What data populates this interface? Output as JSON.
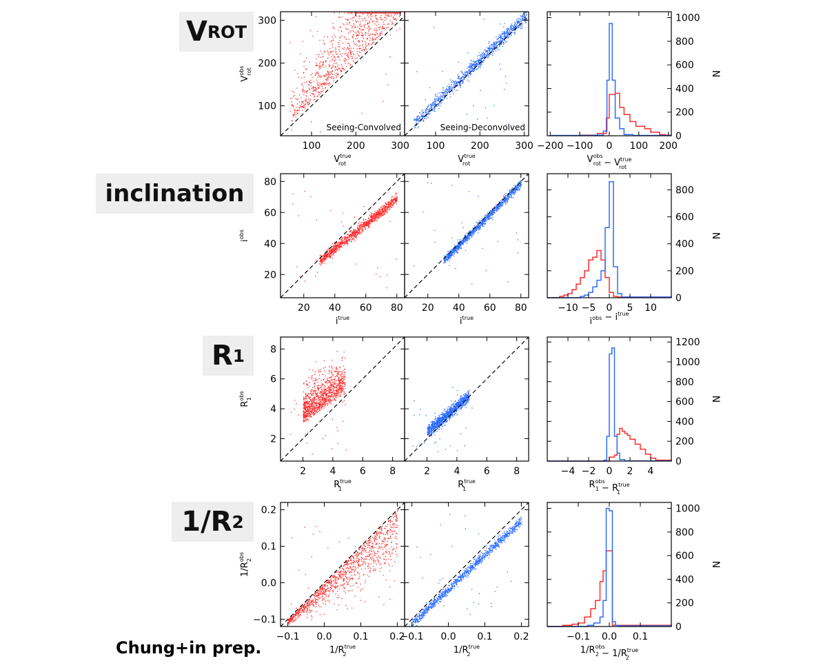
{
  "credit": "Chung+in prep.",
  "colors": {
    "convolved": "#ff2a2a",
    "deconvolved": "#2a6cff",
    "identity_line": "#000000"
  },
  "rows": [
    {
      "label_main": "V",
      "label_sub": "ROT"
    },
    {
      "label_main": "inclination",
      "label_sub": ""
    },
    {
      "label_main": "R",
      "label_sub": "1"
    },
    {
      "label_main": "1/R",
      "label_sub": "2"
    }
  ],
  "chart_data": [
    {
      "type": "scatter",
      "row": "VROT",
      "panels": [
        {
          "name": "convolved",
          "color": "red",
          "annotation": "Seeing-Convolved",
          "xlim": [
            30,
            310
          ],
          "ylim": [
            30,
            320
          ],
          "xticks": [
            100,
            200,
            300
          ],
          "yticks": [
            100,
            200,
            300
          ],
          "xlabel": "V_rot^true",
          "ylabel": "V_rot^obs",
          "identity_line": true
        },
        {
          "name": "deconvolved",
          "color": "blue",
          "annotation": "Seeing-Deconvolved",
          "xlim": [
            30,
            310
          ],
          "ylim": [
            30,
            320
          ],
          "xticks": [
            100,
            200,
            300
          ],
          "yticks": [],
          "xlabel": "V_rot^true",
          "identity_line": true
        }
      ],
      "histogram": {
        "type": "histogram",
        "xlim": [
          -210,
          210
        ],
        "ylim": [
          0,
          1050
        ],
        "xticks": [
          -200,
          -100,
          0,
          100,
          200
        ],
        "yticks": [
          0,
          200,
          400,
          600,
          800,
          1000
        ],
        "xlabel": "V_rot^obs - V_rot^true",
        "ylabel": "N",
        "series": [
          {
            "color": "red",
            "bins": [
              [
                -200,
                2
              ],
              [
                -100,
                5
              ],
              [
                -40,
                20
              ],
              [
                -10,
                150
              ],
              [
                0,
                350
              ],
              [
                20,
                360
              ],
              [
                35,
                240
              ],
              [
                50,
                180
              ],
              [
                70,
                120
              ],
              [
                90,
                80
              ],
              [
                120,
                60
              ],
              [
                140,
                30
              ],
              [
                170,
                10
              ],
              [
                190,
                5
              ]
            ]
          },
          {
            "color": "blue",
            "bins": [
              [
                -200,
                3
              ],
              [
                -50,
                5
              ],
              [
                -20,
                40
              ],
              [
                -8,
                470
              ],
              [
                0,
                950
              ],
              [
                10,
                470
              ],
              [
                20,
                150
              ],
              [
                35,
                60
              ],
              [
                50,
                10
              ],
              [
                80,
                3
              ],
              [
                200,
                3
              ]
            ]
          }
        ]
      }
    },
    {
      "type": "scatter",
      "row": "inclination",
      "panels": [
        {
          "name": "convolved",
          "color": "red",
          "xlim": [
            5,
            85
          ],
          "ylim": [
            5,
            85
          ],
          "xticks": [
            20,
            40,
            60,
            80
          ],
          "yticks": [
            20,
            40,
            60,
            80
          ],
          "xlabel": "i^true",
          "ylabel": "i^obs",
          "identity_line": true
        },
        {
          "name": "deconvolved",
          "color": "blue",
          "xlim": [
            5,
            85
          ],
          "ylim": [
            5,
            85
          ],
          "xticks": [
            20,
            40,
            60,
            80
          ],
          "yticks": [],
          "xlabel": "i^true",
          "identity_line": true
        }
      ],
      "histogram": {
        "type": "histogram",
        "xlim": [
          -15,
          15
        ],
        "ylim": [
          0,
          920
        ],
        "xticks": [
          -10,
          -5,
          0,
          5,
          10
        ],
        "yticks": [
          0,
          200,
          400,
          600,
          800
        ],
        "xlabel": "i^obs - i^true",
        "ylabel": "N",
        "series": [
          {
            "color": "red",
            "bins": [
              [
                -15,
                0
              ],
              [
                -12,
                10
              ],
              [
                -11,
                20
              ],
              [
                -10,
                30
              ],
              [
                -9,
                60
              ],
              [
                -8,
                100
              ],
              [
                -7,
                150
              ],
              [
                -6,
                200
              ],
              [
                -5,
                280
              ],
              [
                -4,
                300
              ],
              [
                -3,
                350
              ],
              [
                -2,
                280
              ],
              [
                -1,
                150
              ],
              [
                0,
                40
              ],
              [
                1,
                10
              ],
              [
                2,
                5
              ],
              [
                15,
                2
              ]
            ]
          },
          {
            "color": "blue",
            "bins": [
              [
                -15,
                0
              ],
              [
                -7,
                10
              ],
              [
                -6,
                20
              ],
              [
                -5,
                40
              ],
              [
                -4,
                80
              ],
              [
                -3,
                130
              ],
              [
                -2,
                200
              ],
              [
                -1,
                520
              ],
              [
                0,
                860
              ],
              [
                1,
                230
              ],
              [
                2,
                30
              ],
              [
                3,
                5
              ],
              [
                15,
                2
              ]
            ]
          }
        ]
      }
    },
    {
      "type": "scatter",
      "row": "R1",
      "panels": [
        {
          "name": "convolved",
          "color": "red",
          "xlim": [
            0.5,
            8.8
          ],
          "ylim": [
            0.5,
            8.8
          ],
          "xticks": [
            2,
            4,
            6,
            8
          ],
          "yticks": [
            2,
            4,
            6,
            8
          ],
          "xlabel": "R_1^true",
          "ylabel": "R_1^obs",
          "identity_line": true
        },
        {
          "name": "deconvolved",
          "color": "blue",
          "xlim": [
            0.5,
            8.8
          ],
          "ylim": [
            0.5,
            8.8
          ],
          "xticks": [
            2,
            4,
            6,
            8
          ],
          "yticks": [],
          "xlabel": "R_1^true",
          "identity_line": true
        }
      ],
      "histogram": {
        "type": "histogram",
        "xlim": [
          -6,
          6
        ],
        "ylim": [
          0,
          1250
        ],
        "xticks": [
          -4,
          -2,
          0,
          2,
          4
        ],
        "yticks": [
          0,
          200,
          400,
          600,
          800,
          1000,
          1200
        ],
        "xlabel": "R_1^obs - R_1^true",
        "ylabel": "N",
        "series": [
          {
            "color": "red",
            "bins": [
              [
                -6,
                0
              ],
              [
                0,
                40
              ],
              [
                0.5,
                60
              ],
              [
                0.75,
                270
              ],
              [
                1,
                330
              ],
              [
                1.25,
                300
              ],
              [
                1.5,
                280
              ],
              [
                1.75,
                260
              ],
              [
                2,
                220
              ],
              [
                2.5,
                170
              ],
              [
                3,
                120
              ],
              [
                3.5,
                70
              ],
              [
                4,
                30
              ],
              [
                4.5,
                10
              ],
              [
                6,
                2
              ]
            ]
          },
          {
            "color": "blue",
            "bins": [
              [
                -6,
                0
              ],
              [
                -0.5,
                10
              ],
              [
                -0.25,
                250
              ],
              [
                0,
                1080
              ],
              [
                0.25,
                1140
              ],
              [
                0.5,
                250
              ],
              [
                0.75,
                80
              ],
              [
                1,
                15
              ],
              [
                1.5,
                3
              ],
              [
                6,
                0
              ]
            ]
          }
        ]
      }
    },
    {
      "type": "scatter",
      "row": "1/R2",
      "panels": [
        {
          "name": "convolved",
          "color": "red",
          "xlim": [
            -0.12,
            0.22
          ],
          "ylim": [
            -0.12,
            0.22
          ],
          "xticks": [
            -0.1,
            0.0,
            0.1,
            0.2
          ],
          "yticks": [
            -0.1,
            0.0,
            0.1,
            0.2
          ],
          "xlabel": "1/R_2^true",
          "ylabel": "1/R_2^obs",
          "identity_line": true
        },
        {
          "name": "deconvolved",
          "color": "blue",
          "xlim": [
            -0.12,
            0.22
          ],
          "ylim": [
            -0.12,
            0.22
          ],
          "xticks": [
            -0.1,
            0.0,
            0.1,
            0.2
          ],
          "yticks": [],
          "xlabel": "1/R_2^true",
          "identity_line": true
        }
      ],
      "histogram": {
        "type": "histogram",
        "xlim": [
          -0.2,
          0.2
        ],
        "ylim": [
          0,
          1050
        ],
        "xticks": [
          -0.1,
          0.0,
          0.1
        ],
        "yticks": [
          0,
          200,
          400,
          600,
          800,
          1000
        ],
        "xlabel": "1/R_2^obs - 1/R_2^true",
        "ylabel": "N",
        "series": [
          {
            "color": "red",
            "bins": [
              [
                -0.2,
                0
              ],
              [
                -0.15,
                10
              ],
              [
                -0.12,
                20
              ],
              [
                -0.1,
                30
              ],
              [
                -0.08,
                80
              ],
              [
                -0.06,
                150
              ],
              [
                -0.045,
                220
              ],
              [
                -0.03,
                380
              ],
              [
                -0.02,
                470
              ],
              [
                -0.01,
                640
              ],
              [
                0,
                640
              ],
              [
                0.01,
                10
              ],
              [
                0.2,
                2
              ]
            ]
          },
          {
            "color": "blue",
            "bins": [
              [
                -0.2,
                0
              ],
              [
                -0.07,
                10
              ],
              [
                -0.05,
                30
              ],
              [
                -0.03,
                80
              ],
              [
                -0.02,
                220
              ],
              [
                -0.01,
                1000
              ],
              [
                0,
                980
              ],
              [
                0.01,
                40
              ],
              [
                0.02,
                10
              ],
              [
                0.03,
                5
              ],
              [
                0.2,
                2
              ]
            ]
          }
        ]
      }
    }
  ]
}
